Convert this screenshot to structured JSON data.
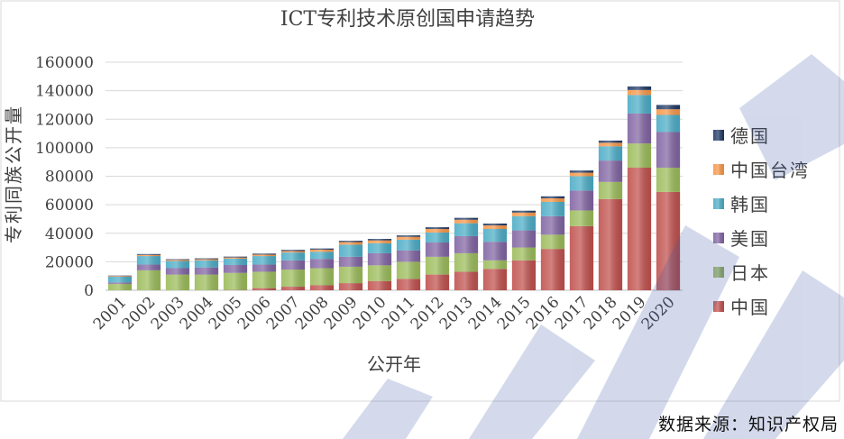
{
  "chart_data": {
    "type": "bar",
    "stacked": true,
    "title": "ICT专利技术原创国申请趋势",
    "xlabel": "公开年",
    "ylabel": "专利同族公开量",
    "ylim": [
      0,
      160000
    ],
    "yticks": [
      0,
      20000,
      40000,
      60000,
      80000,
      100000,
      120000,
      140000,
      160000
    ],
    "grid": true,
    "legend_position": "right",
    "categories": [
      "2001",
      "2002",
      "2003",
      "2004",
      "2005",
      "2006",
      "2007",
      "2008",
      "2009",
      "2010",
      "2011",
      "2012",
      "2013",
      "2014",
      "2015",
      "2016",
      "2017",
      "2018",
      "2019",
      "2020"
    ],
    "series": [
      {
        "name": "中国",
        "color": "#c0504d",
        "values": [
          0,
          0,
          0,
          0,
          200,
          1500,
          2500,
          3500,
          5000,
          6500,
          8000,
          11000,
          13000,
          15000,
          21000,
          29000,
          45000,
          64000,
          86000,
          69000
        ]
      },
      {
        "name": "日本",
        "color": "#9bbb59",
        "values": [
          4500,
          14000,
          11000,
          11000,
          12000,
          11500,
          12000,
          12000,
          11500,
          11000,
          12000,
          12500,
          13000,
          6000,
          9000,
          10000,
          11000,
          12000,
          17000,
          17000
        ]
      },
      {
        "name": "美国",
        "color": "#8064a2",
        "values": [
          1000,
          4000,
          4500,
          5000,
          5500,
          5000,
          6500,
          6500,
          7000,
          8500,
          8000,
          10000,
          12000,
          13000,
          12000,
          13000,
          14000,
          15000,
          21000,
          25000
        ]
      },
      {
        "name": "韩国",
        "color": "#4bacc6",
        "values": [
          4000,
          6000,
          5000,
          5000,
          4500,
          6000,
          5500,
          5000,
          8500,
          7000,
          7500,
          7000,
          9000,
          9000,
          10000,
          10000,
          10000,
          10000,
          13000,
          12000
        ]
      },
      {
        "name": "中国台湾",
        "color": "#f79646",
        "values": [
          500,
          800,
          800,
          800,
          800,
          1000,
          1000,
          1500,
          1800,
          2000,
          2000,
          2500,
          2500,
          2500,
          2500,
          2500,
          2500,
          2500,
          3500,
          4000
        ]
      },
      {
        "name": "德国",
        "color": "#1f3864",
        "values": [
          300,
          600,
          500,
          600,
          600,
          700,
          800,
          800,
          900,
          1000,
          1000,
          1200,
          1300,
          1300,
          1300,
          1400,
          1500,
          1500,
          2500,
          3000
        ]
      }
    ]
  },
  "source_note": "数据来源：知识产权局"
}
